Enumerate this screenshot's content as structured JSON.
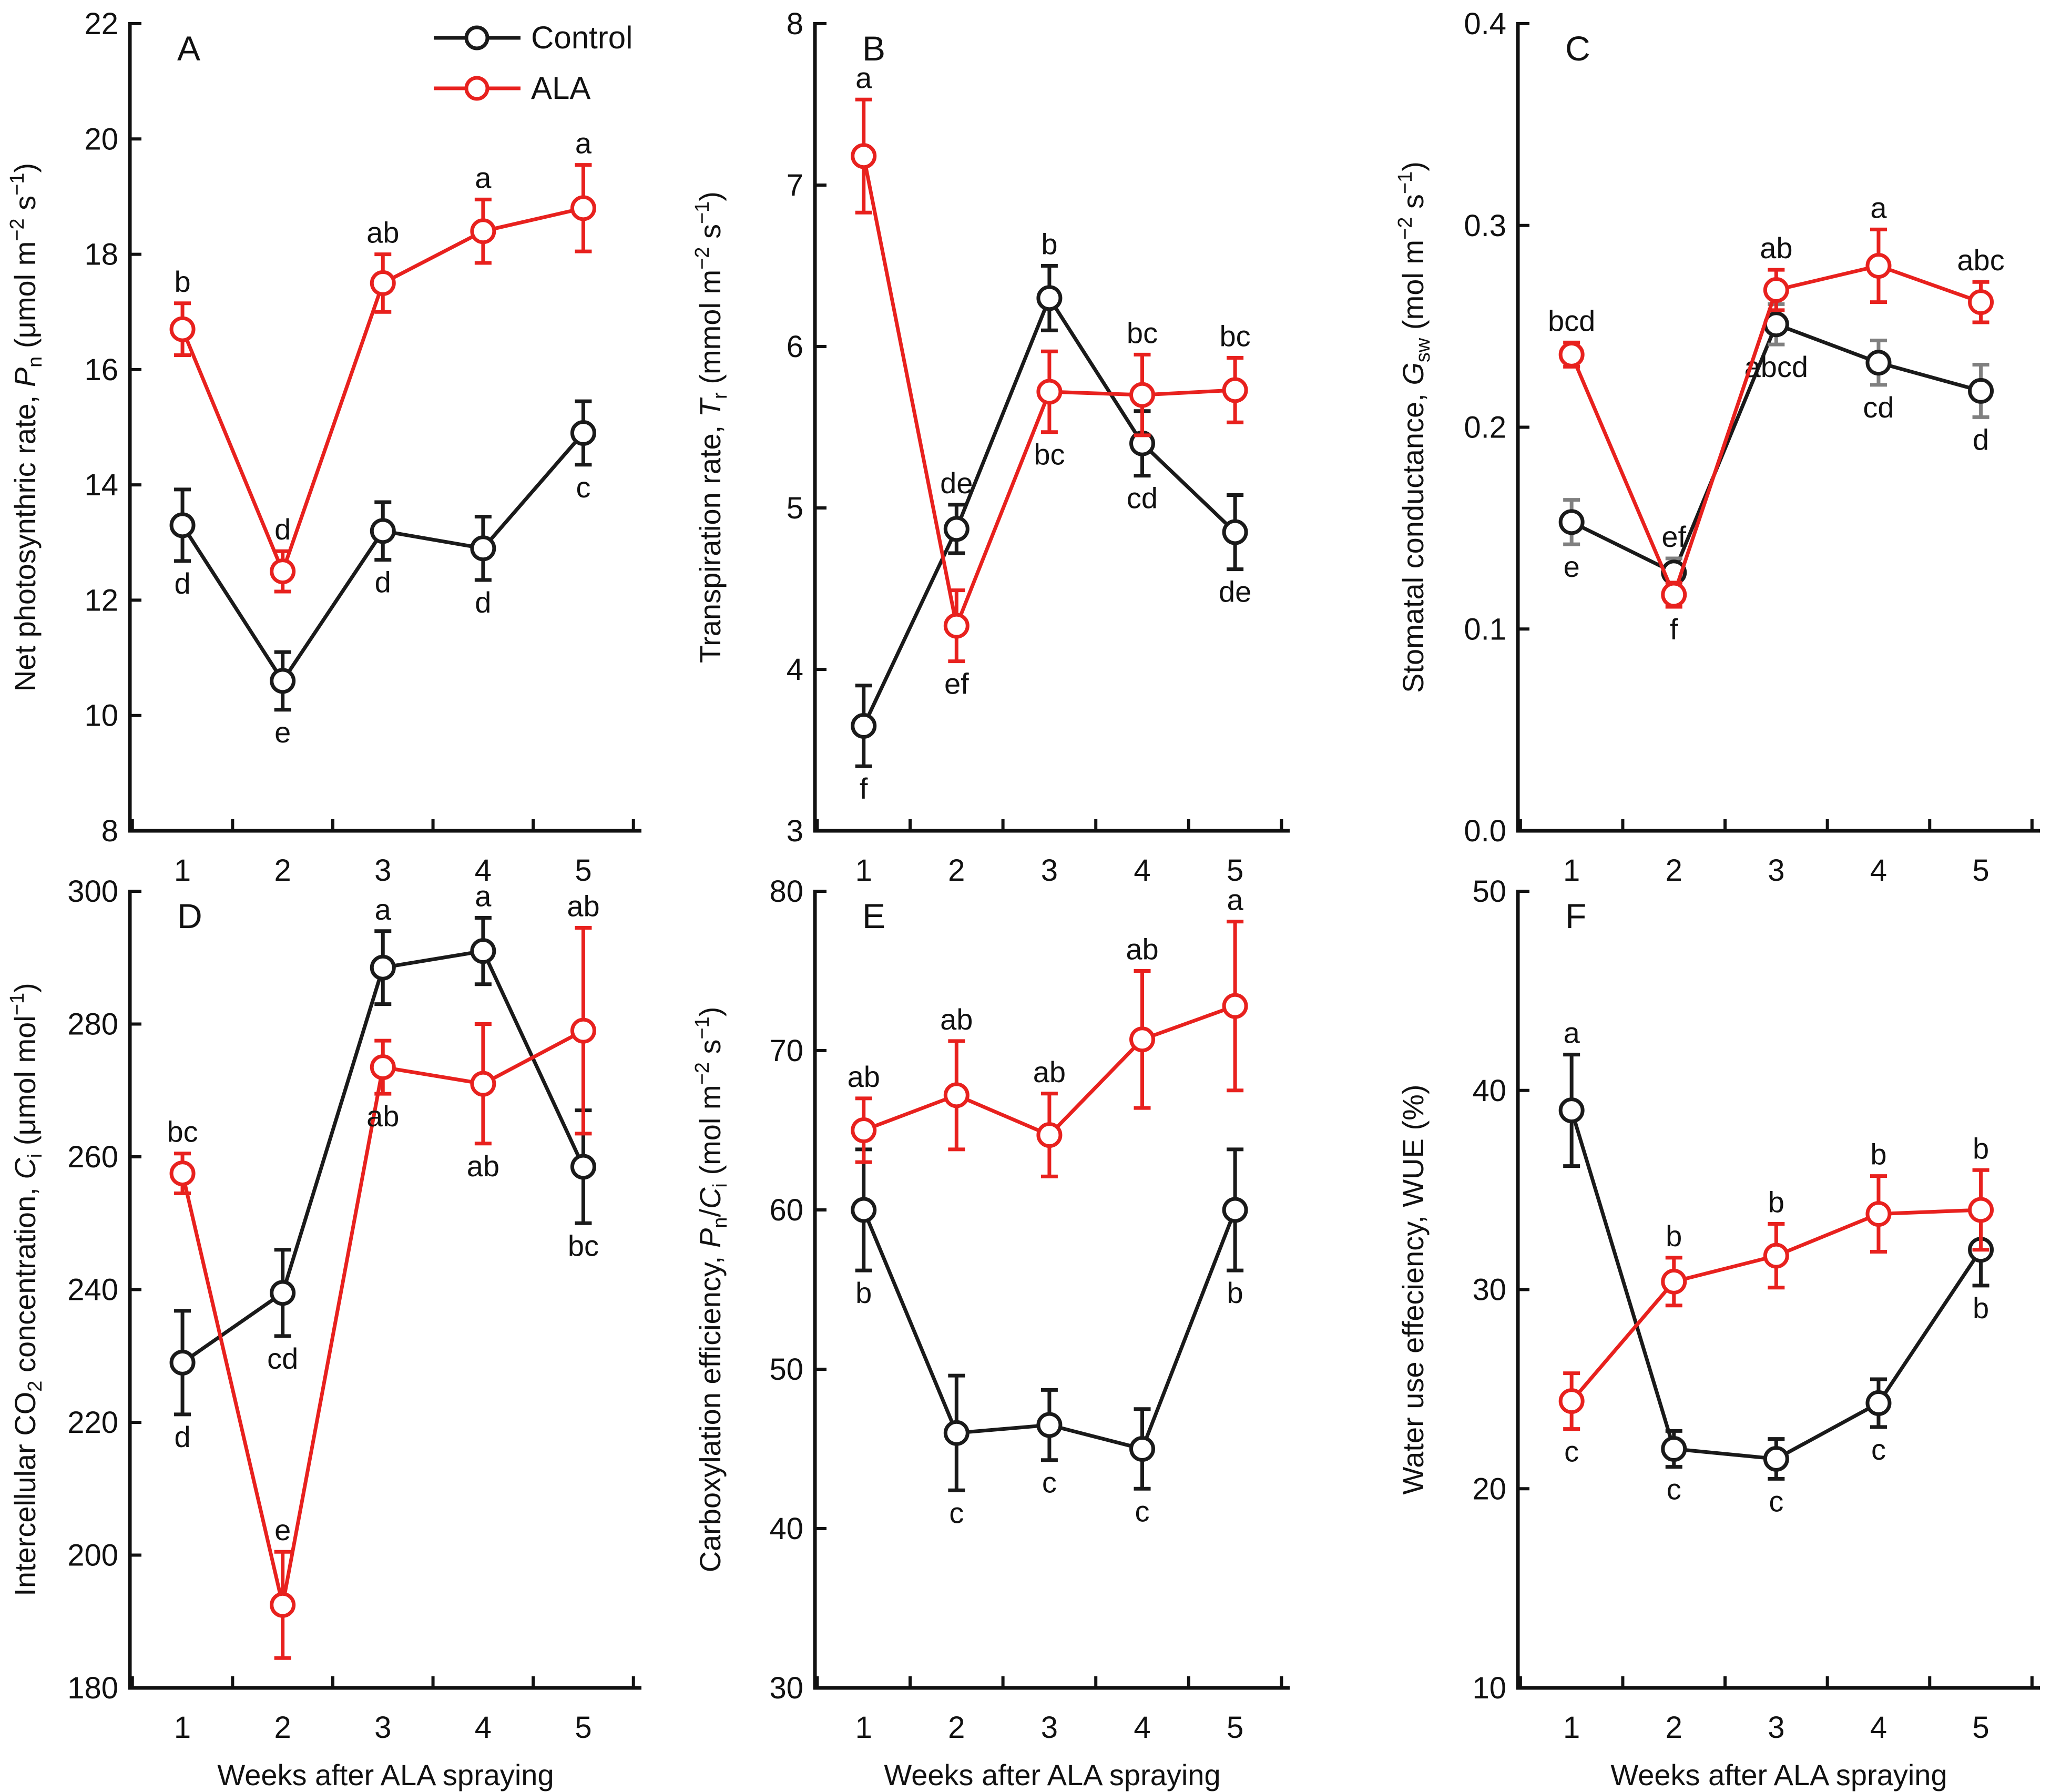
{
  "figure": {
    "legend": [
      {
        "key": "control",
        "label": "Control",
        "color": "#1a1a1a"
      },
      {
        "key": "ala",
        "label": "ALA",
        "color": "#e8211e"
      }
    ]
  },
  "chart_data": [
    {
      "type": "line",
      "panel": "A",
      "xlabel": "",
      "x": [
        1,
        2,
        3,
        4,
        5
      ],
      "ylim": [
        8,
        22
      ],
      "yticks": [
        8,
        10,
        12,
        14,
        16,
        18,
        20,
        22
      ],
      "ytick_decimals": 0,
      "ylabel_parts": [
        {
          "t": "Net photosynthric rate, ",
          "s": "n"
        },
        {
          "t": "P",
          "s": "i"
        },
        {
          "t": "n",
          "s": "sub"
        },
        {
          "t": " (μmol m",
          "s": "n"
        },
        {
          "t": "−2",
          "s": "sup"
        },
        {
          "t": " s",
          "s": "n"
        },
        {
          "t": "−1",
          "s": "sup"
        },
        {
          "t": ")",
          "s": "n"
        }
      ],
      "series": [
        {
          "name": "Control",
          "values": [
            13.3,
            10.6,
            13.2,
            12.9,
            14.9
          ],
          "errors": [
            0.62,
            0.5,
            0.5,
            0.55,
            0.55
          ],
          "labels": [
            "d",
            "e",
            "d",
            "d",
            "c"
          ],
          "label_pos": [
            "below",
            "below",
            "below",
            "below",
            "below"
          ]
        },
        {
          "name": "ALA",
          "values": [
            16.7,
            12.5,
            17.5,
            18.4,
            18.8
          ],
          "errors": [
            0.45,
            0.35,
            0.5,
            0.55,
            0.75
          ],
          "labels": [
            "b",
            "d",
            "ab",
            "a",
            "a"
          ],
          "label_pos": [
            "above",
            "above",
            "above",
            "above",
            "above"
          ]
        }
      ]
    },
    {
      "type": "line",
      "panel": "B",
      "xlabel": "",
      "x": [
        1,
        2,
        3,
        4,
        5
      ],
      "ylim": [
        3,
        8
      ],
      "yticks": [
        3,
        4,
        5,
        6,
        7,
        8
      ],
      "ytick_decimals": 0,
      "ylabel_parts": [
        {
          "t": "Transpiration rate, ",
          "s": "n"
        },
        {
          "t": "T",
          "s": "i"
        },
        {
          "t": "r",
          "s": "sub"
        },
        {
          "t": " (mmol m",
          "s": "n"
        },
        {
          "t": "−2",
          "s": "sup"
        },
        {
          "t": " s",
          "s": "n"
        },
        {
          "t": "−1",
          "s": "sup"
        },
        {
          "t": ")",
          "s": "n"
        }
      ],
      "series": [
        {
          "name": "Control",
          "values": [
            3.65,
            4.87,
            6.3,
            5.4,
            4.85
          ],
          "errors": [
            0.25,
            0.15,
            0.2,
            0.2,
            0.23
          ],
          "labels": [
            "f",
            "de",
            "b",
            "cd",
            "de"
          ],
          "label_pos": [
            "below",
            "above",
            "above",
            "below",
            "below"
          ]
        },
        {
          "name": "ALA",
          "values": [
            7.18,
            4.27,
            5.72,
            5.7,
            5.73
          ],
          "errors": [
            0.35,
            0.22,
            0.25,
            0.25,
            0.2
          ],
          "labels": [
            "a",
            "ef",
            "bc",
            "bc",
            "bc"
          ],
          "label_pos": [
            "above",
            "below",
            "below",
            "above",
            "above"
          ]
        }
      ]
    },
    {
      "type": "line",
      "panel": "C",
      "xlabel": "",
      "x": [
        1,
        2,
        3,
        4,
        5
      ],
      "ylim": [
        0,
        0.4
      ],
      "yticks": [
        0,
        0.1,
        0.2,
        0.3,
        0.4
      ],
      "ytick_decimals": 1,
      "ylabel_parts": [
        {
          "t": "Stomatal conductance, ",
          "s": "n"
        },
        {
          "t": "G",
          "s": "i"
        },
        {
          "t": "sw",
          "s": "sub"
        },
        {
          "t": " (mol m",
          "s": "n"
        },
        {
          "t": "−2",
          "s": "sup"
        },
        {
          "t": " s",
          "s": "n"
        },
        {
          "t": "−1",
          "s": "sup"
        },
        {
          "t": ")",
          "s": "n"
        }
      ],
      "series": [
        {
          "name": "Control",
          "values": [
            0.153,
            0.128,
            0.251,
            0.232,
            0.218
          ],
          "errors": [
            0.011,
            0.007,
            0.01,
            0.011,
            0.013
          ],
          "labels": [
            "e",
            "ef",
            "abcd",
            "cd",
            "d"
          ],
          "label_pos": [
            "below",
            "above",
            "below",
            "below",
            "below"
          ]
        },
        {
          "name": "ALA",
          "values": [
            0.236,
            0.117,
            0.268,
            0.28,
            0.262
          ],
          "errors": [
            0.006,
            0.006,
            0.01,
            0.018,
            0.01
          ],
          "labels": [
            "bcd",
            "f",
            "ab",
            "a",
            "abc"
          ],
          "label_pos": [
            "above",
            "below",
            "above",
            "above",
            "above"
          ]
        }
      ]
    },
    {
      "type": "line",
      "panel": "D",
      "xlabel": "Weeks after ALA spraying",
      "x": [
        1,
        2,
        3,
        4,
        5
      ],
      "ylim": [
        180,
        300
      ],
      "yticks": [
        180,
        200,
        220,
        240,
        260,
        280,
        300
      ],
      "ytick_decimals": 0,
      "ylabel_parts": [
        {
          "t": "Intercellular CO",
          "s": "n"
        },
        {
          "t": "2",
          "s": "sub"
        },
        {
          "t": " concentration, ",
          "s": "n"
        },
        {
          "t": "C",
          "s": "i"
        },
        {
          "t": "i",
          "s": "sub"
        },
        {
          "t": "  (μmol mol",
          "s": "n"
        },
        {
          "t": "−1",
          "s": "sup"
        },
        {
          "t": ")",
          "s": "n"
        }
      ],
      "series": [
        {
          "name": "Control",
          "values": [
            229,
            239.5,
            288.5,
            291,
            258.5
          ],
          "errors": [
            7.8,
            6.5,
            5.5,
            5,
            8.5
          ],
          "labels": [
            "d",
            "cd",
            "a",
            "a",
            "bc"
          ],
          "label_pos": [
            "below",
            "below",
            "above",
            "above",
            "below"
          ]
        },
        {
          "name": "ALA",
          "values": [
            257.5,
            192.5,
            273.5,
            271,
            279
          ],
          "errors": [
            3,
            8,
            4,
            9,
            15.5
          ],
          "labels": [
            "bc",
            "e",
            "ab",
            "ab",
            "ab"
          ],
          "label_pos": [
            "above",
            "above",
            "below",
            "below",
            "above"
          ]
        }
      ]
    },
    {
      "type": "line",
      "panel": "E",
      "xlabel": "Weeks after ALA spraying",
      "x": [
        1,
        2,
        3,
        4,
        5
      ],
      "ylim": [
        30,
        80
      ],
      "yticks": [
        30,
        40,
        50,
        60,
        70,
        80
      ],
      "ytick_decimals": 0,
      "ylabel_parts": [
        {
          "t": "Carboxylation efficiency, ",
          "s": "n"
        },
        {
          "t": "P",
          "s": "i"
        },
        {
          "t": "n",
          "s": "sub"
        },
        {
          "t": "/",
          "s": "n"
        },
        {
          "t": "C",
          "s": "i"
        },
        {
          "t": "i",
          "s": "sub"
        },
        {
          "t": " (mol m",
          "s": "n"
        },
        {
          "t": "−2",
          "s": "sup"
        },
        {
          "t": " s",
          "s": "n"
        },
        {
          "t": "−1",
          "s": "sup"
        },
        {
          "t": ")",
          "s": "n"
        }
      ],
      "series": [
        {
          "name": "Control",
          "values": [
            60,
            46,
            46.5,
            45,
            60
          ],
          "errors": [
            3.8,
            3.6,
            2.2,
            2.5,
            3.8
          ],
          "labels": [
            "b",
            "c",
            "c",
            "c",
            "b"
          ],
          "label_pos": [
            "below",
            "below",
            "below",
            "below",
            "below"
          ]
        },
        {
          "name": "ALA",
          "values": [
            65,
            67.2,
            64.7,
            70.7,
            72.8
          ],
          "errors": [
            2,
            3.4,
            2.6,
            4.3,
            5.3
          ],
          "labels": [
            "ab",
            "ab",
            "ab",
            "ab",
            "a"
          ],
          "label_pos": [
            "above",
            "above",
            "above",
            "above",
            "above"
          ]
        }
      ]
    },
    {
      "type": "line",
      "panel": "F",
      "xlabel": "Weeks after ALA spraying",
      "x": [
        1,
        2,
        3,
        4,
        5
      ],
      "ylim": [
        10,
        50
      ],
      "yticks": [
        10,
        20,
        30,
        40,
        50
      ],
      "ytick_decimals": 0,
      "ylabel_parts": [
        {
          "t": "Water use effeciency, WUE (%)",
          "s": "n"
        }
      ],
      "series": [
        {
          "name": "Control",
          "values": [
            39,
            22,
            21.5,
            24.3,
            32
          ],
          "errors": [
            2.8,
            0.9,
            1,
            1.2,
            1.8
          ],
          "labels": [
            "a",
            "c",
            "c",
            "c",
            "b"
          ],
          "label_pos": [
            "above",
            "below",
            "below",
            "below",
            "below"
          ]
        },
        {
          "name": "ALA",
          "values": [
            24.4,
            30.4,
            31.7,
            33.8,
            34
          ],
          "errors": [
            1.4,
            1.2,
            1.6,
            1.9,
            2
          ],
          "labels": [
            "c",
            "b",
            "b",
            "b",
            "b"
          ],
          "label_pos": [
            "below",
            "above",
            "above",
            "above",
            "above"
          ]
        }
      ]
    }
  ]
}
